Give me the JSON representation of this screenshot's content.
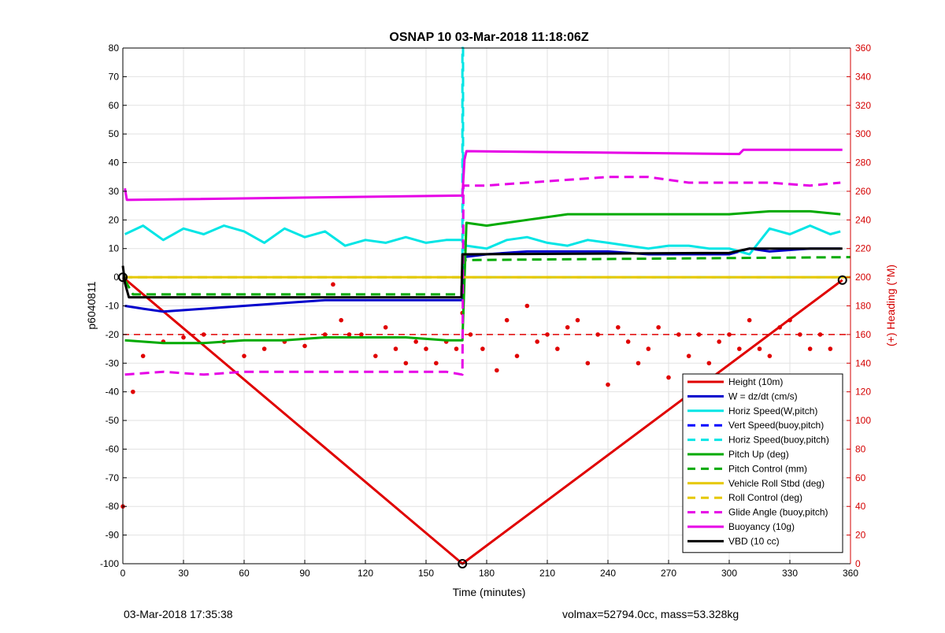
{
  "chart_data": {
    "type": "line",
    "title": "OSNAP 10 03-Mar-2018 11:18:06Z",
    "xlabel": "Time (minutes)",
    "ylabel": "p6040811",
    "ylabel_right": "(+) Heading (°M)",
    "xlim": [
      0,
      360
    ],
    "ylim": [
      -100,
      80
    ],
    "ylim_right": [
      0,
      360
    ],
    "x_ticks": [
      "0",
      "30",
      "60",
      "90",
      "120",
      "150",
      "180",
      "210",
      "240",
      "270",
      "300",
      "330",
      "360"
    ],
    "y_ticks": [
      "80",
      "70",
      "60",
      "50",
      "40",
      "30",
      "20",
      "10",
      "0",
      "-10",
      "-20",
      "-30",
      "-40",
      "-50",
      "-60",
      "-70",
      "-80",
      "-90",
      "-100"
    ],
    "y_ticks_right": [
      "360",
      "340",
      "320",
      "300",
      "280",
      "260",
      "240",
      "220",
      "200",
      "180",
      "160",
      "140",
      "120",
      "100",
      "80",
      "60",
      "40",
      "20",
      "0"
    ],
    "grid": true,
    "legend_position": "bottom-right",
    "series": [
      {
        "name": "Height (10m)",
        "color": "#e00000",
        "style": "solid",
        "x": [
          0,
          168,
          356
        ],
        "y": [
          0,
          -100,
          -1
        ]
      },
      {
        "name": "W = dz/dt (cm/s)",
        "color": "#0000cc",
        "style": "solid",
        "x": [
          1,
          10,
          20,
          40,
          60,
          80,
          100,
          120,
          140,
          160,
          168,
          168.5,
          180,
          200,
          220,
          240,
          260,
          280,
          300,
          310,
          320,
          340,
          355
        ],
        "y": [
          -10,
          -11,
          -12,
          -11,
          -10,
          -9,
          -8,
          -8,
          -8,
          -8,
          -8,
          7,
          8,
          9,
          9,
          9,
          8,
          8,
          8,
          10,
          9,
          10,
          10
        ]
      },
      {
        "name": "Horiz Speed(W,pitch)",
        "color": "#00e5e5",
        "style": "solid",
        "x": [
          1,
          10,
          20,
          30,
          40,
          50,
          60,
          70,
          80,
          90,
          100,
          110,
          120,
          130,
          140,
          150,
          160,
          168,
          170,
          180,
          190,
          200,
          210,
          220,
          230,
          240,
          250,
          260,
          270,
          280,
          290,
          300,
          310,
          320,
          330,
          340,
          350,
          355
        ],
        "y": [
          15,
          18,
          13,
          17,
          15,
          18,
          16,
          12,
          17,
          14,
          16,
          11,
          13,
          12,
          14,
          12,
          13,
          13,
          11,
          10,
          13,
          14,
          12,
          11,
          13,
          12,
          11,
          10,
          11,
          11,
          10,
          10,
          8,
          17,
          15,
          18,
          15,
          16
        ]
      },
      {
        "name": "Vert Speed(buoy,pitch)",
        "color": "#0000ff",
        "style": "dashed",
        "x": [],
        "y": []
      },
      {
        "name": "Horiz Speed(buoy,pitch)",
        "color": "#00e5e5",
        "style": "dashed",
        "x": [
          0,
          168,
          168,
          168.3,
          168.3,
          360
        ],
        "y": [
          0,
          0,
          80,
          80,
          0,
          0
        ]
      },
      {
        "name": "Pitch Up (deg)",
        "color": "#00aa00",
        "style": "solid",
        "x": [
          1,
          20,
          40,
          60,
          80,
          100,
          120,
          140,
          160,
          168,
          170,
          180,
          200,
          220,
          240,
          260,
          280,
          300,
          320,
          340,
          355
        ],
        "y": [
          -22,
          -23,
          -23,
          -22,
          -22,
          -21,
          -21,
          -21,
          -22,
          -22,
          19,
          18,
          20,
          22,
          22,
          22,
          22,
          22,
          23,
          23,
          22
        ]
      },
      {
        "name": "Pitch Control (mm)",
        "color": "#00aa00",
        "style": "dashed",
        "x": [
          1,
          5,
          60,
          167.5,
          168,
          170,
          360
        ],
        "y": [
          -1,
          -6,
          -6,
          -6,
          6,
          6,
          7
        ]
      },
      {
        "name": "Vehicle Roll Stbd (deg)",
        "color": "#e6c800",
        "style": "solid",
        "x": [
          1,
          30,
          60,
          90,
          120,
          150,
          168,
          180,
          210,
          240,
          270,
          300,
          330,
          355
        ],
        "y": [
          0,
          0,
          0,
          0,
          0,
          0,
          0,
          0,
          0,
          0,
          0,
          0,
          0,
          0
        ]
      },
      {
        "name": "Roll Control (deg)",
        "color": "#e6c800",
        "style": "dashed",
        "x": [
          0,
          360
        ],
        "y": [
          0,
          0
        ]
      },
      {
        "name": "Glide Angle (buoy,pitch)",
        "color": "#e600e6",
        "style": "dashed",
        "x": [
          1,
          20,
          40,
          60,
          80,
          100,
          120,
          140,
          160,
          168,
          168.5,
          180,
          200,
          220,
          240,
          260,
          280,
          300,
          320,
          340,
          355
        ],
        "y": [
          -34,
          -33,
          -34,
          -33,
          -33,
          -33,
          -33,
          -33,
          -33,
          -34,
          32,
          32,
          33,
          34,
          35,
          35,
          33,
          33,
          33,
          32,
          33
        ]
      },
      {
        "name": "Buoyancy (10g)",
        "color": "#e600e6",
        "style": "solid",
        "x": [
          1,
          2,
          168,
          169,
          170,
          305,
          307,
          356
        ],
        "y": [
          31,
          27,
          28.5,
          41,
          44,
          43,
          44.5,
          44.5
        ]
      },
      {
        "name": "VBD (10 cc)",
        "color": "#000000",
        "style": "solid",
        "x": [
          0,
          1,
          3,
          167.5,
          168,
          170,
          300,
          310,
          356
        ],
        "y": [
          4,
          -2,
          -7,
          -7,
          8,
          8,
          8.5,
          10,
          10
        ]
      }
    ],
    "heading_series": {
      "name": "heading",
      "axis": "right",
      "color": "#e00000",
      "style": "dotted",
      "x": [
        0,
        5,
        10,
        20,
        30,
        40,
        50,
        60,
        70,
        80,
        90,
        100,
        104,
        108,
        112,
        118,
        125,
        130,
        135,
        140,
        145,
        150,
        155,
        160,
        165,
        168,
        172,
        178,
        185,
        190,
        195,
        200,
        205,
        210,
        215,
        220,
        225,
        230,
        235,
        240,
        245,
        250,
        255,
        260,
        265,
        270,
        275,
        280,
        285,
        290,
        295,
        300,
        305,
        310,
        315,
        320,
        325,
        330,
        335,
        340,
        345,
        350,
        355
      ],
      "y": [
        40,
        120,
        145,
        155,
        158,
        160,
        155,
        145,
        150,
        155,
        152,
        160,
        195,
        170,
        160,
        160,
        145,
        165,
        150,
        140,
        155,
        150,
        140,
        155,
        150,
        175,
        160,
        150,
        135,
        170,
        145,
        180,
        155,
        160,
        150,
        165,
        170,
        140,
        160,
        125,
        165,
        155,
        140,
        150,
        165,
        130,
        160,
        145,
        160,
        140,
        155,
        160,
        150,
        170,
        150,
        145,
        165,
        170,
        160,
        150,
        160,
        150,
        125
      ]
    },
    "heading_target": {
      "axis": "right",
      "value": 160
    },
    "vertical_dives": {
      "x": [
        168
      ]
    }
  },
  "footer": {
    "left": "03-Mar-2018 17:35:38",
    "right": "volmax=52794.0cc, mass=53.328kg"
  }
}
